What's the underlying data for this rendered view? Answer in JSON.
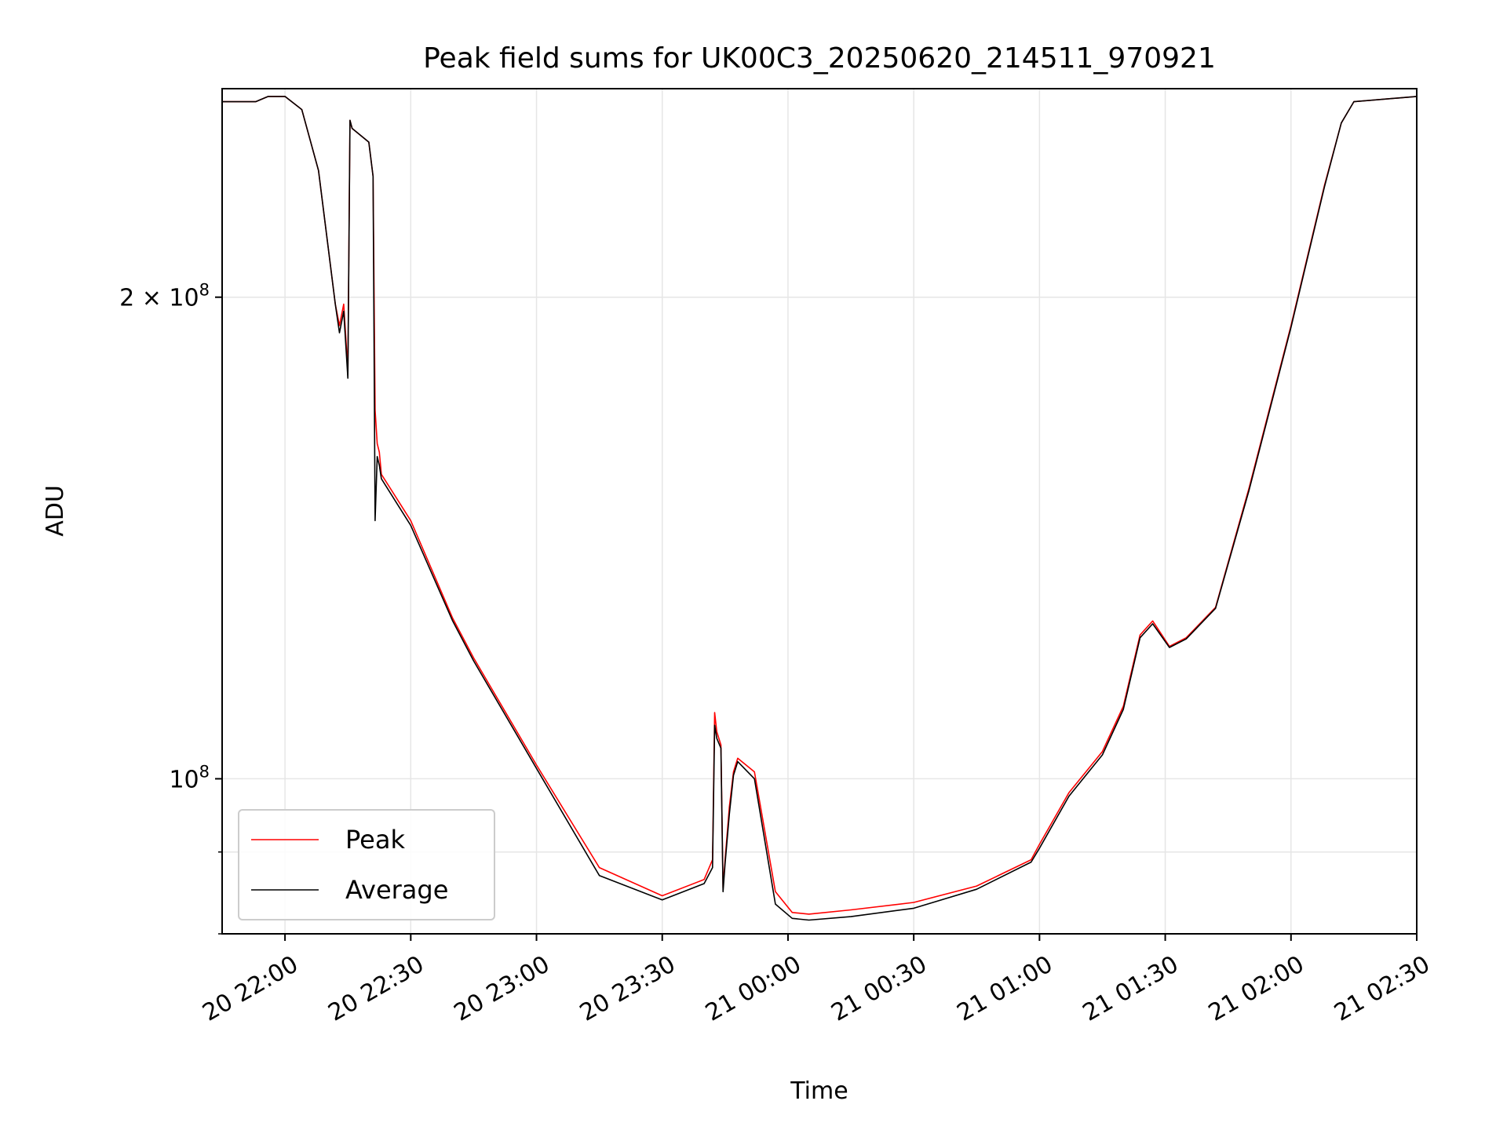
{
  "chart_data": {
    "type": "line",
    "title": "Peak field sums for UK00C3_20250620_214511_970921",
    "xlabel": "Time",
    "ylabel": "ADU",
    "yscale": "log",
    "grid": true,
    "legend_position": "lower-left",
    "xlim": [
      "20 21:45",
      "21 02:30"
    ],
    "ylim": [
      80000000,
      270000000
    ],
    "x_ticks": [
      "20 22:00",
      "20 22:30",
      "20 23:00",
      "20 23:30",
      "21 00:00",
      "21 00:30",
      "21 01:00",
      "21 01:30",
      "21 02:00",
      "21 02:30"
    ],
    "y_ticks": [
      {
        "value": 100000000,
        "label": "10",
        "exp": "8"
      },
      {
        "value": 200000000,
        "label": "2 × 10",
        "exp": "8"
      }
    ],
    "x": [
      "20 21:45",
      "20 21:53",
      "20 21:56",
      "20 22:00",
      "20 22:04",
      "20 22:08",
      "20 22:12",
      "20 22:13",
      "20 22:14",
      "20 22:15",
      "20 22:15:30",
      "20 22:16",
      "20 22:20",
      "20 22:21",
      "20 22:21:30",
      "20 22:22",
      "20 22:22:30",
      "20 22:23",
      "20 22:30",
      "20 22:40",
      "20 22:45",
      "20 23:00",
      "20 23:15",
      "20 23:30",
      "20 23:40",
      "20 23:42",
      "20 23:42:30",
      "20 23:43",
      "20 23:44",
      "20 23:44:30",
      "20 23:45",
      "20 23:46",
      "20 23:47",
      "20 23:48",
      "20 23:52",
      "20 23:57",
      "21 00:01",
      "21 00:05",
      "21 00:15",
      "21 00:30",
      "21 00:45",
      "21 00:58",
      "21 01:00",
      "21 01:07",
      "21 01:15",
      "21 01:20",
      "21 01:24",
      "21 01:27",
      "21 01:31",
      "21 01:35",
      "21 01:42",
      "21 01:50",
      "21 02:00",
      "21 02:08",
      "21 02:12",
      "21 02:15",
      "21 02:30"
    ],
    "series": [
      {
        "name": "Peak",
        "color": "#ff0000",
        "values": [
          265000000,
          265000000,
          267000000,
          267000000,
          262000000,
          240000000,
          198000000,
          192000000,
          198000000,
          180000000,
          258000000,
          255000000,
          250000000,
          238000000,
          170000000,
          162000000,
          160000000,
          155000000,
          145000000,
          126000000,
          119000000,
          102000000,
          88000000,
          84500000,
          86500000,
          89000000,
          110000000,
          107000000,
          105000000,
          85500000,
          89000000,
          96000000,
          101000000,
          103000000,
          101000000,
          85000000,
          82500000,
          82300000,
          82800000,
          83700000,
          85700000,
          89000000,
          91000000,
          98000000,
          104000000,
          111000000,
          123000000,
          125500000,
          121000000,
          122500000,
          128000000,
          152000000,
          192000000,
          235000000,
          257000000,
          265000000,
          267000000
        ]
      },
      {
        "name": "Average",
        "color": "#000000",
        "values": [
          265000000,
          265000000,
          267000000,
          267000000,
          262000000,
          240000000,
          198000000,
          190000000,
          196000000,
          178000000,
          258000000,
          255000000,
          250000000,
          238000000,
          145000000,
          159000000,
          157000000,
          154000000,
          144000000,
          125500000,
          118500000,
          101500000,
          87000000,
          84000000,
          86000000,
          88000000,
          108000000,
          106000000,
          104500000,
          85000000,
          88500000,
          95000000,
          100500000,
          102500000,
          100000000,
          83500000,
          81800000,
          81600000,
          82000000,
          83000000,
          85300000,
          88700000,
          90500000,
          97500000,
          103500000,
          110500000,
          122500000,
          125000000,
          120800000,
          122300000,
          127800000,
          151500000,
          191500000,
          234500000,
          257000000,
          265000000,
          267000000
        ]
      }
    ]
  }
}
